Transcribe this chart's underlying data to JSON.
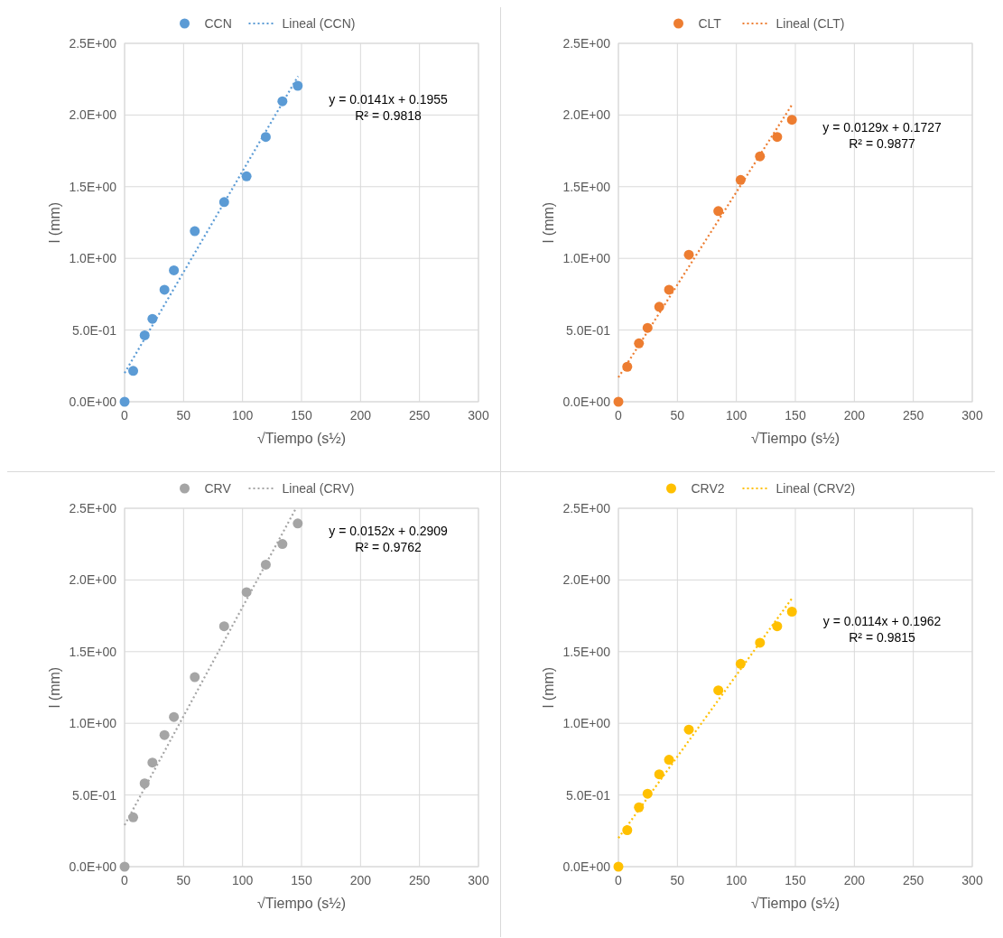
{
  "chart_data": [
    {
      "type": "scatter",
      "xlabel": "√Tiempo (s½)",
      "ylabel": "l (mm)",
      "xlim": [
        0,
        300
      ],
      "xticks": [
        0,
        50,
        100,
        150,
        200,
        250,
        300
      ],
      "ylim": [
        0,
        2.5
      ],
      "yticks": [
        {
          "value": 0,
          "label": "0.0E+00"
        },
        {
          "value": 0.5,
          "label": "5.0E-01"
        },
        {
          "value": 1,
          "label": "1.0E+00"
        },
        {
          "value": 1.5,
          "label": "1.5E+00"
        },
        {
          "value": 2,
          "label": "2.0E+00"
        },
        {
          "value": 2.5,
          "label": "2.5E+00"
        }
      ],
      "grid": true,
      "legend": "top",
      "marker": "circle",
      "annotations": [
        "y = 0.0141x + 0.1955",
        "R² = 0.9818"
      ],
      "series": [
        {
          "name": "CCN",
          "color": "#5b9bd5",
          "x": [
            0,
            7.3,
            17,
            23.6,
            33.8,
            41.8,
            59.5,
            84.4,
            103.4,
            119.7,
            133.8,
            146.8
          ],
          "values": [
            0,
            0.215,
            0.463,
            0.578,
            0.781,
            0.917,
            1.19,
            1.393,
            1.572,
            1.847,
            2.096,
            2.204
          ]
        },
        {
          "name": "Lineal (CCN)",
          "type": "line",
          "line_style": "dotted",
          "marker": "none",
          "color": "#5b9bd5",
          "x": [
            0,
            147
          ],
          "values": [
            0.2,
            2.27
          ]
        }
      ]
    },
    {
      "type": "scatter",
      "xlabel": "√Tiempo (s½)",
      "ylabel": "l (mm)",
      "xlim": [
        0,
        300
      ],
      "xticks": [
        0,
        50,
        100,
        150,
        200,
        250,
        300
      ],
      "ylim": [
        0,
        2.5
      ],
      "yticks": [
        {
          "value": 0,
          "label": "0.0E+00"
        },
        {
          "value": 0.5,
          "label": "5.0E-01"
        },
        {
          "value": 1,
          "label": "1.0E+00"
        },
        {
          "value": 1.5,
          "label": "1.5E+00"
        },
        {
          "value": 2,
          "label": "2.0E+00"
        },
        {
          "value": 2.5,
          "label": "2.5E+00"
        }
      ],
      "grid": true,
      "legend": "top",
      "marker": "circle",
      "annotations": [
        "y = 0.0129x + 0.1727",
        "R² = 0.9877"
      ],
      "series": [
        {
          "name": "CLT",
          "color": "#ed7d31",
          "x": [
            0,
            7.5,
            17.4,
            24.7,
            34.6,
            42.9,
            59.7,
            84.7,
            103.6,
            120,
            134.6,
            147.1
          ],
          "values": [
            0,
            0.244,
            0.407,
            0.515,
            0.662,
            0.781,
            1.025,
            1.33,
            1.547,
            1.712,
            1.847,
            1.967
          ]
        },
        {
          "name": "Lineal (CLT)",
          "type": "line",
          "line_style": "dotted",
          "marker": "none",
          "color": "#ed7d31",
          "x": [
            0,
            147
          ],
          "values": [
            0.17,
            2.07
          ]
        }
      ]
    },
    {
      "type": "scatter",
      "xlabel": "√Tiempo (s½)",
      "ylabel": "l (mm)",
      "xlim": [
        0,
        300
      ],
      "xticks": [
        0,
        50,
        100,
        150,
        200,
        250,
        300
      ],
      "ylim": [
        0,
        2.5
      ],
      "yticks": [
        {
          "value": 0,
          "label": "0.0E+00"
        },
        {
          "value": 0.5,
          "label": "5.0E-01"
        },
        {
          "value": 1,
          "label": "1.0E+00"
        },
        {
          "value": 1.5,
          "label": "1.5E+00"
        },
        {
          "value": 2,
          "label": "2.0E+00"
        },
        {
          "value": 2.5,
          "label": "2.5E+00"
        }
      ],
      "grid": true,
      "legend": "top",
      "marker": "circle",
      "annotations": [
        "y = 0.0152x + 0.2909",
        "R² = 0.9762"
      ],
      "series": [
        {
          "name": "CRV",
          "color": "#a5a5a5",
          "x": [
            0,
            7.3,
            17,
            23.6,
            33.8,
            41.8,
            59.5,
            84.4,
            103.4,
            119.7,
            133.8,
            146.8
          ],
          "values": [
            0,
            0.344,
            0.581,
            0.726,
            0.918,
            1.044,
            1.322,
            1.677,
            1.915,
            2.107,
            2.251,
            2.394
          ]
        },
        {
          "name": "Lineal (CRV)",
          "type": "line",
          "line_style": "dotted",
          "marker": "none",
          "color": "#a5a5a5",
          "x": [
            0,
            145.3
          ],
          "values": [
            0.29,
            2.5
          ]
        }
      ]
    },
    {
      "type": "scatter",
      "xlabel": "√Tiempo (s½)",
      "ylabel": "l (mm)",
      "xlim": [
        0,
        300
      ],
      "xticks": [
        0,
        50,
        100,
        150,
        200,
        250,
        300
      ],
      "ylim": [
        0,
        2.5
      ],
      "yticks": [
        {
          "value": 0,
          "label": "0.0E+00"
        },
        {
          "value": 0.5,
          "label": "5.0E-01"
        },
        {
          "value": 1,
          "label": "1.0E+00"
        },
        {
          "value": 1.5,
          "label": "1.5E+00"
        },
        {
          "value": 2,
          "label": "2.0E+00"
        },
        {
          "value": 2.5,
          "label": "2.5E+00"
        }
      ],
      "grid": true,
      "legend": "top",
      "marker": "circle",
      "annotations": [
        "y = 0.0114x + 0.1962",
        "R² = 0.9815"
      ],
      "series": [
        {
          "name": "CRV2",
          "color": "#ffc000",
          "x": [
            0,
            7.5,
            17.4,
            24.7,
            34.6,
            42.9,
            59.7,
            84.7,
            103.6,
            120,
            134.6,
            147.1
          ],
          "values": [
            0,
            0.255,
            0.414,
            0.509,
            0.644,
            0.746,
            0.956,
            1.23,
            1.415,
            1.562,
            1.677,
            1.779
          ]
        },
        {
          "name": "Lineal (CRV2)",
          "type": "line",
          "line_style": "dotted",
          "marker": "none",
          "color": "#ffc000",
          "x": [
            0,
            147
          ],
          "values": [
            0.2,
            1.87
          ]
        }
      ]
    }
  ]
}
